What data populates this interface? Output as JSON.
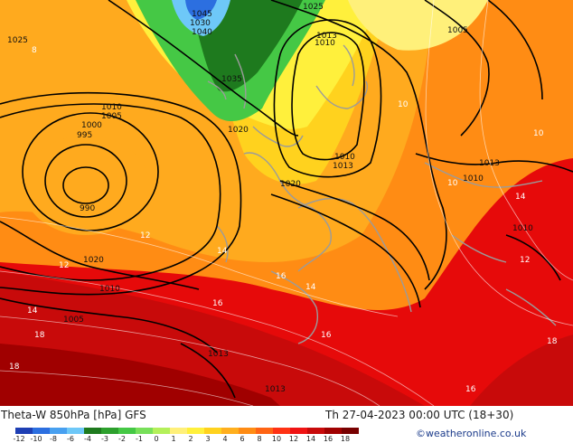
{
  "map": {
    "pressure_labels": [
      "1025",
      "1025",
      "1030",
      "1040",
      "1045",
      "1035",
      "1013",
      "1010",
      "1005",
      "1010",
      "1005",
      "1000",
      "995",
      "990",
      "1020",
      "1020",
      "1010",
      "1013",
      "1020",
      "1013",
      "1010",
      "1005",
      "1010",
      "1013",
      "1013",
      "1010"
    ],
    "theta_labels": [
      "8",
      "10",
      "10",
      "12",
      "12",
      "14",
      "14",
      "16",
      "18",
      "18",
      "16",
      "14",
      "14",
      "12",
      "10",
      "16",
      "16",
      "18"
    ],
    "land_color": "#9b9b9b",
    "isobar_color": "#000000"
  },
  "footer": {
    "title": "Theta-W 850hPa [hPa] GFS",
    "timestamp": "Th 27-04-2023 00:00 UTC (18+30)",
    "credit": "©weatheronline.co.uk"
  },
  "colorbar": {
    "colors": [
      "#1e3fb4",
      "#2c6fe0",
      "#48a0f0",
      "#6ec8f8",
      "#1e7a1e",
      "#2da02d",
      "#45c845",
      "#78e05a",
      "#b4f05a",
      "#fff07a",
      "#fff03c",
      "#ffd21e",
      "#ffaf1e",
      "#ff8c14",
      "#ff6414",
      "#ff3214",
      "#f01414",
      "#c80a0a",
      "#a00000",
      "#780000"
    ],
    "ticks": [
      "-12",
      "-10",
      "-8",
      "-6",
      "-4",
      "-3",
      "-2",
      "-1",
      "0",
      "1",
      "2",
      "3",
      "4",
      "6",
      "8",
      "10",
      "12",
      "14",
      "16",
      "18"
    ]
  }
}
